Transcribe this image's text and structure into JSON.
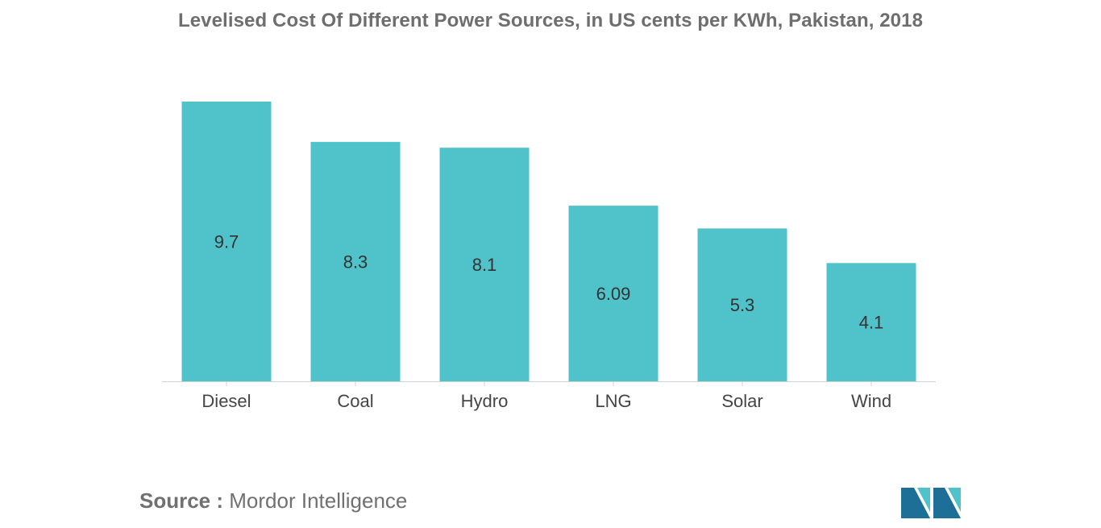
{
  "chart_data": {
    "type": "bar",
    "title": "Levelised Cost Of Different Power Sources, in US cents per KWh, Pakistan, 2018",
    "categories": [
      "Diesel",
      "Coal",
      "Hydro",
      "LNG",
      "Solar",
      "Wind"
    ],
    "values": [
      9.7,
      8.3,
      8.1,
      6.09,
      5.3,
      4.1
    ],
    "value_labels": [
      "9.7",
      "8.3",
      "8.1",
      "6.09",
      "5.3",
      "4.1"
    ],
    "xlabel": "",
    "ylabel": "",
    "ylim": [
      0,
      9.7
    ],
    "grid": false,
    "legend": "none",
    "bar_color": "#4fc3c9"
  },
  "source": {
    "label": "Source :",
    "text": "Mordor Intelligence"
  },
  "colors": {
    "title": "#6e6e6e",
    "logo_dark": "#1d6f97",
    "logo_light": "#4fc3c9"
  }
}
